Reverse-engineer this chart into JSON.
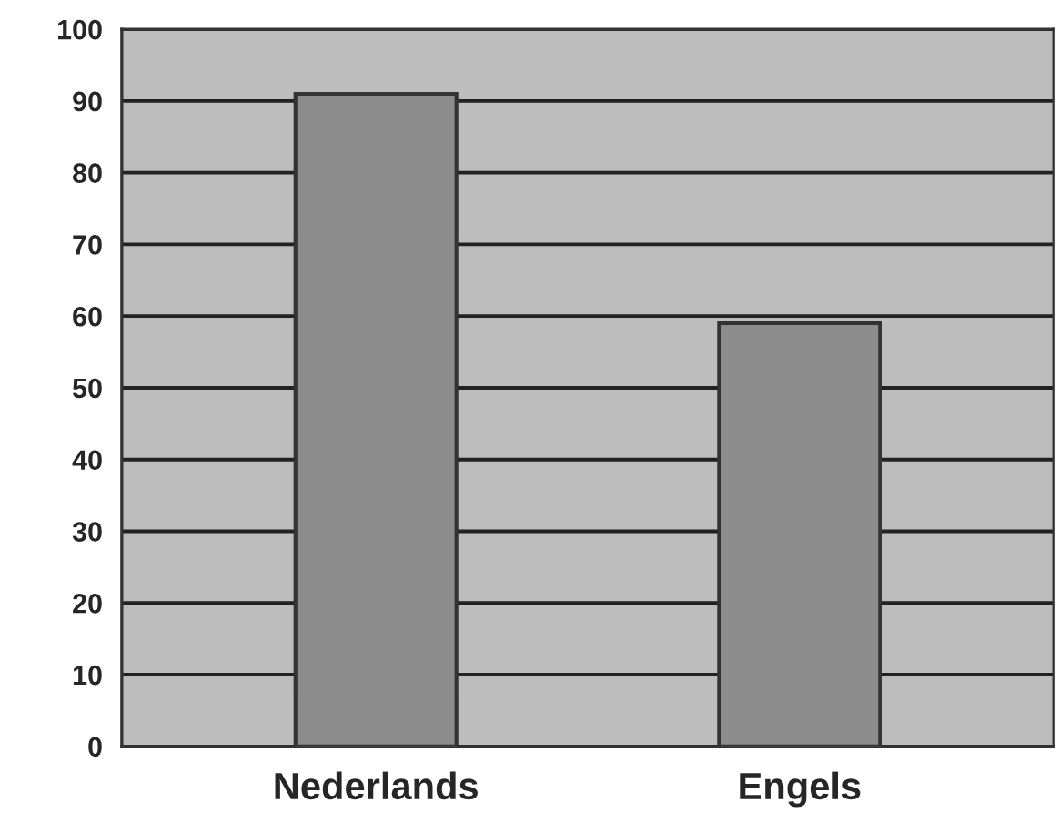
{
  "chart_data": {
    "type": "bar",
    "categories": [
      "Nederlands",
      "Engels"
    ],
    "values": [
      91,
      59
    ],
    "color": "#8c8c8c",
    "ylim": [
      0,
      100
    ],
    "yticks": [
      0,
      10,
      20,
      30,
      40,
      50,
      60,
      70,
      80,
      90,
      100
    ],
    "grid": "y"
  }
}
